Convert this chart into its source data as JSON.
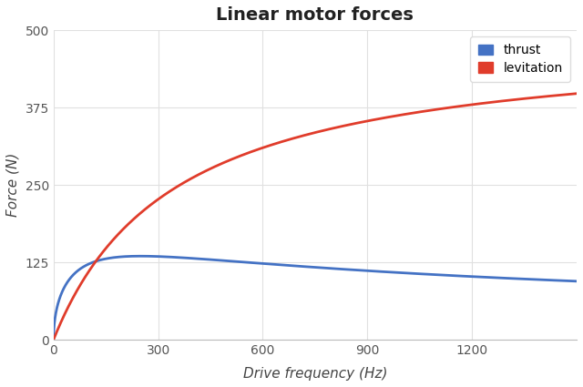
{
  "title": "Linear motor forces",
  "xlabel": "Drive frequency (Hz)",
  "ylabel": "Force (N)",
  "xlim": [
    0,
    1500
  ],
  "ylim": [
    0,
    500
  ],
  "xticks": [
    0,
    300,
    600,
    900,
    1200
  ],
  "yticks": [
    0,
    125,
    250,
    375,
    500
  ],
  "thrust_color": "#4472c4",
  "levitation_color": "#e03c2b",
  "legend_labels": [
    "thrust",
    "levitation"
  ],
  "background_color": "#ffffff",
  "grid_color": "#e0e0e0",
  "title_fontsize": 14,
  "label_fontsize": 11,
  "lev_A": 560.0,
  "lev_B": 380.0,
  "thrust_peak": 135.0,
  "thrust_peak_f": 250.0,
  "thrust_end": 100.0
}
